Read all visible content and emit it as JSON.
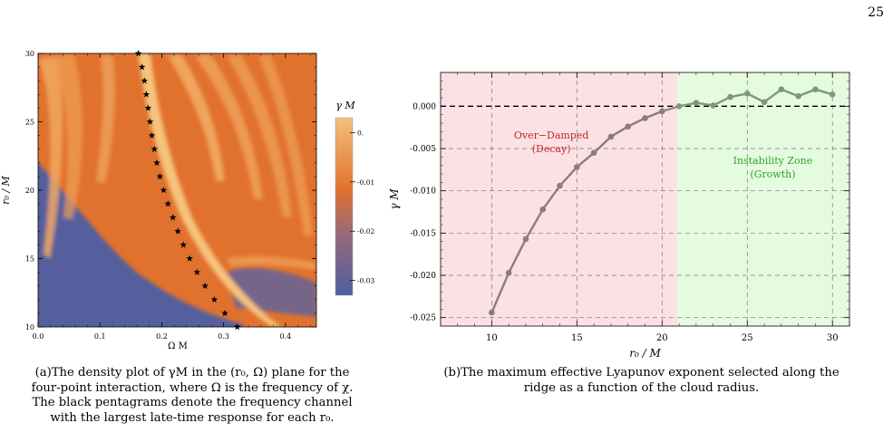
{
  "page": {
    "number": "25"
  },
  "panel_a": {
    "xlabel": "Ω M",
    "ylabel": "r₀ / M",
    "legend_title": "γ M",
    "x_ticks": [
      "0.0",
      "0.1",
      "0.2",
      "0.3",
      "0.4"
    ],
    "y_ticks": [
      "10",
      "15",
      "20",
      "25",
      "30"
    ],
    "colorbar_ticks": [
      "0.",
      "-0.01",
      "-0.02",
      "-0.03"
    ],
    "caption_lines": [
      "(a)The density plot of γM in the (r₀, Ω) plane for the",
      "four-point interaction, where Ω is the frequency of χ.",
      "The black pentagrams denote the frequency channel",
      "with the largest late-time response for each r₀."
    ]
  },
  "panel_b": {
    "caption_lines": [
      "(b)The maximum effective Lyapunov exponent selected along the",
      "ridge as a function of the cloud radius."
    ]
  },
  "chart_data": [
    {
      "type": "heatmap",
      "xlabel": "Ω M",
      "ylabel": "r₀ / M",
      "xlim": [
        0,
        0.45
      ],
      "ylim": [
        10,
        30
      ],
      "colorbar_label": "γ M",
      "colorbar_range": [
        -0.033,
        0.003
      ],
      "colors": {
        "high": "#f2b56c",
        "mid": "#e1722e",
        "low": "#4e5ea2"
      },
      "ridge_points": [
        {
          "r0": 30,
          "omega": 0.162
        },
        {
          "r0": 29,
          "omega": 0.168
        },
        {
          "r0": 28,
          "omega": 0.172
        },
        {
          "r0": 27,
          "omega": 0.175
        },
        {
          "r0": 26,
          "omega": 0.178
        },
        {
          "r0": 25,
          "omega": 0.181
        },
        {
          "r0": 24,
          "omega": 0.184
        },
        {
          "r0": 23,
          "omega": 0.188
        },
        {
          "r0": 22,
          "omega": 0.192
        },
        {
          "r0": 21,
          "omega": 0.197
        },
        {
          "r0": 20,
          "omega": 0.203
        },
        {
          "r0": 19,
          "omega": 0.21
        },
        {
          "r0": 18,
          "omega": 0.218
        },
        {
          "r0": 17,
          "omega": 0.226
        },
        {
          "r0": 16,
          "omega": 0.235
        },
        {
          "r0": 15,
          "omega": 0.245
        },
        {
          "r0": 14,
          "omega": 0.257
        },
        {
          "r0": 13,
          "omega": 0.27
        },
        {
          "r0": 12,
          "omega": 0.285
        },
        {
          "r0": 11,
          "omega": 0.302
        },
        {
          "r0": 10,
          "omega": 0.322
        }
      ]
    },
    {
      "type": "line",
      "xlabel": "r₀ / M",
      "ylabel": "γ M",
      "xlim": [
        7,
        31
      ],
      "ylim": [
        -0.026,
        0.004
      ],
      "x_ticks": [
        10,
        15,
        20,
        25,
        30
      ],
      "y_ticks": [
        0.0,
        -0.005,
        -0.01,
        -0.015,
        -0.02,
        -0.025
      ],
      "y_tick_labels": [
        "0.000",
        "-0.005",
        "-0.010",
        "-0.015",
        "-0.020",
        "-0.025"
      ],
      "grid": true,
      "regions": [
        {
          "label_lines": [
            "Over−Damped",
            "(Decay)"
          ],
          "x_range": [
            7,
            20.9
          ],
          "color": "#fbe1e3",
          "text_color": "#c0272d"
        },
        {
          "label_lines": [
            "Instability Zone",
            "(Growth)"
          ],
          "x_range": [
            20.9,
            31
          ],
          "color": "#e5fbe0",
          "text_color": "#2aa62a"
        }
      ],
      "series": [
        {
          "color": "#8a7b84",
          "x": [
            10,
            11,
            12,
            13,
            14,
            15,
            16,
            17,
            18,
            19,
            20
          ],
          "y": [
            -0.0244,
            -0.0197,
            -0.0157,
            -0.0122,
            -0.0094,
            -0.0072,
            -0.0055,
            -0.0036,
            -0.0024,
            -0.0014,
            -0.0006
          ]
        },
        {
          "color": "#7d9877",
          "x": [
            21,
            22,
            23,
            24,
            25,
            26,
            27,
            28,
            29,
            30
          ],
          "y": [
            0.0,
            0.0004,
            0.0001,
            0.0011,
            0.0015,
            0.0005,
            0.002,
            0.0012,
            0.002,
            0.0014
          ]
        }
      ]
    }
  ]
}
